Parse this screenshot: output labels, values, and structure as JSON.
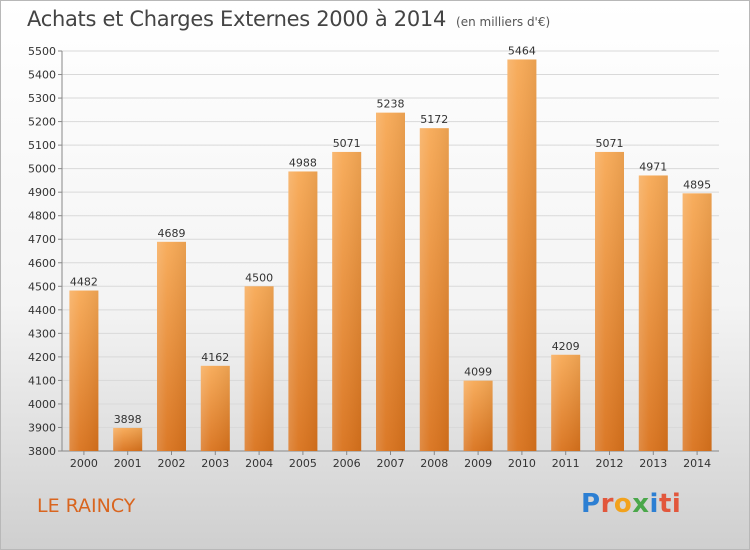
{
  "header": {
    "title": "Achats et Charges Externes 2000 à 2014",
    "unit": "(en milliers d'€)"
  },
  "footer": {
    "city": "LE RAINCY",
    "logo": [
      "P",
      "r",
      "o",
      "x",
      "i",
      "ti"
    ]
  },
  "colors": {
    "bar_top": "#f7a955",
    "bar_bottom": "#d9721c",
    "grid": "#d9d9d9",
    "text": "#333333",
    "city": "#d9651f"
  },
  "chart_data": {
    "type": "bar",
    "title": "Achats et Charges Externes 2000 à 2014",
    "subtitle": "(en milliers d'€)",
    "categories": [
      "2000",
      "2001",
      "2002",
      "2003",
      "2004",
      "2005",
      "2006",
      "2007",
      "2008",
      "2009",
      "2010",
      "2011",
      "2012",
      "2013",
      "2014"
    ],
    "values": [
      4482,
      3898,
      4689,
      4162,
      4500,
      4988,
      5071,
      5238,
      5172,
      4099,
      5464,
      4209,
      5071,
      4971,
      4895
    ],
    "ylim": [
      3800,
      5500
    ],
    "yticks": [
      3800,
      3900,
      4000,
      4100,
      4200,
      4300,
      4400,
      4500,
      4600,
      4700,
      4800,
      4900,
      5000,
      5100,
      5200,
      5300,
      5400,
      5500
    ],
    "grid": true,
    "data_labels": true
  }
}
